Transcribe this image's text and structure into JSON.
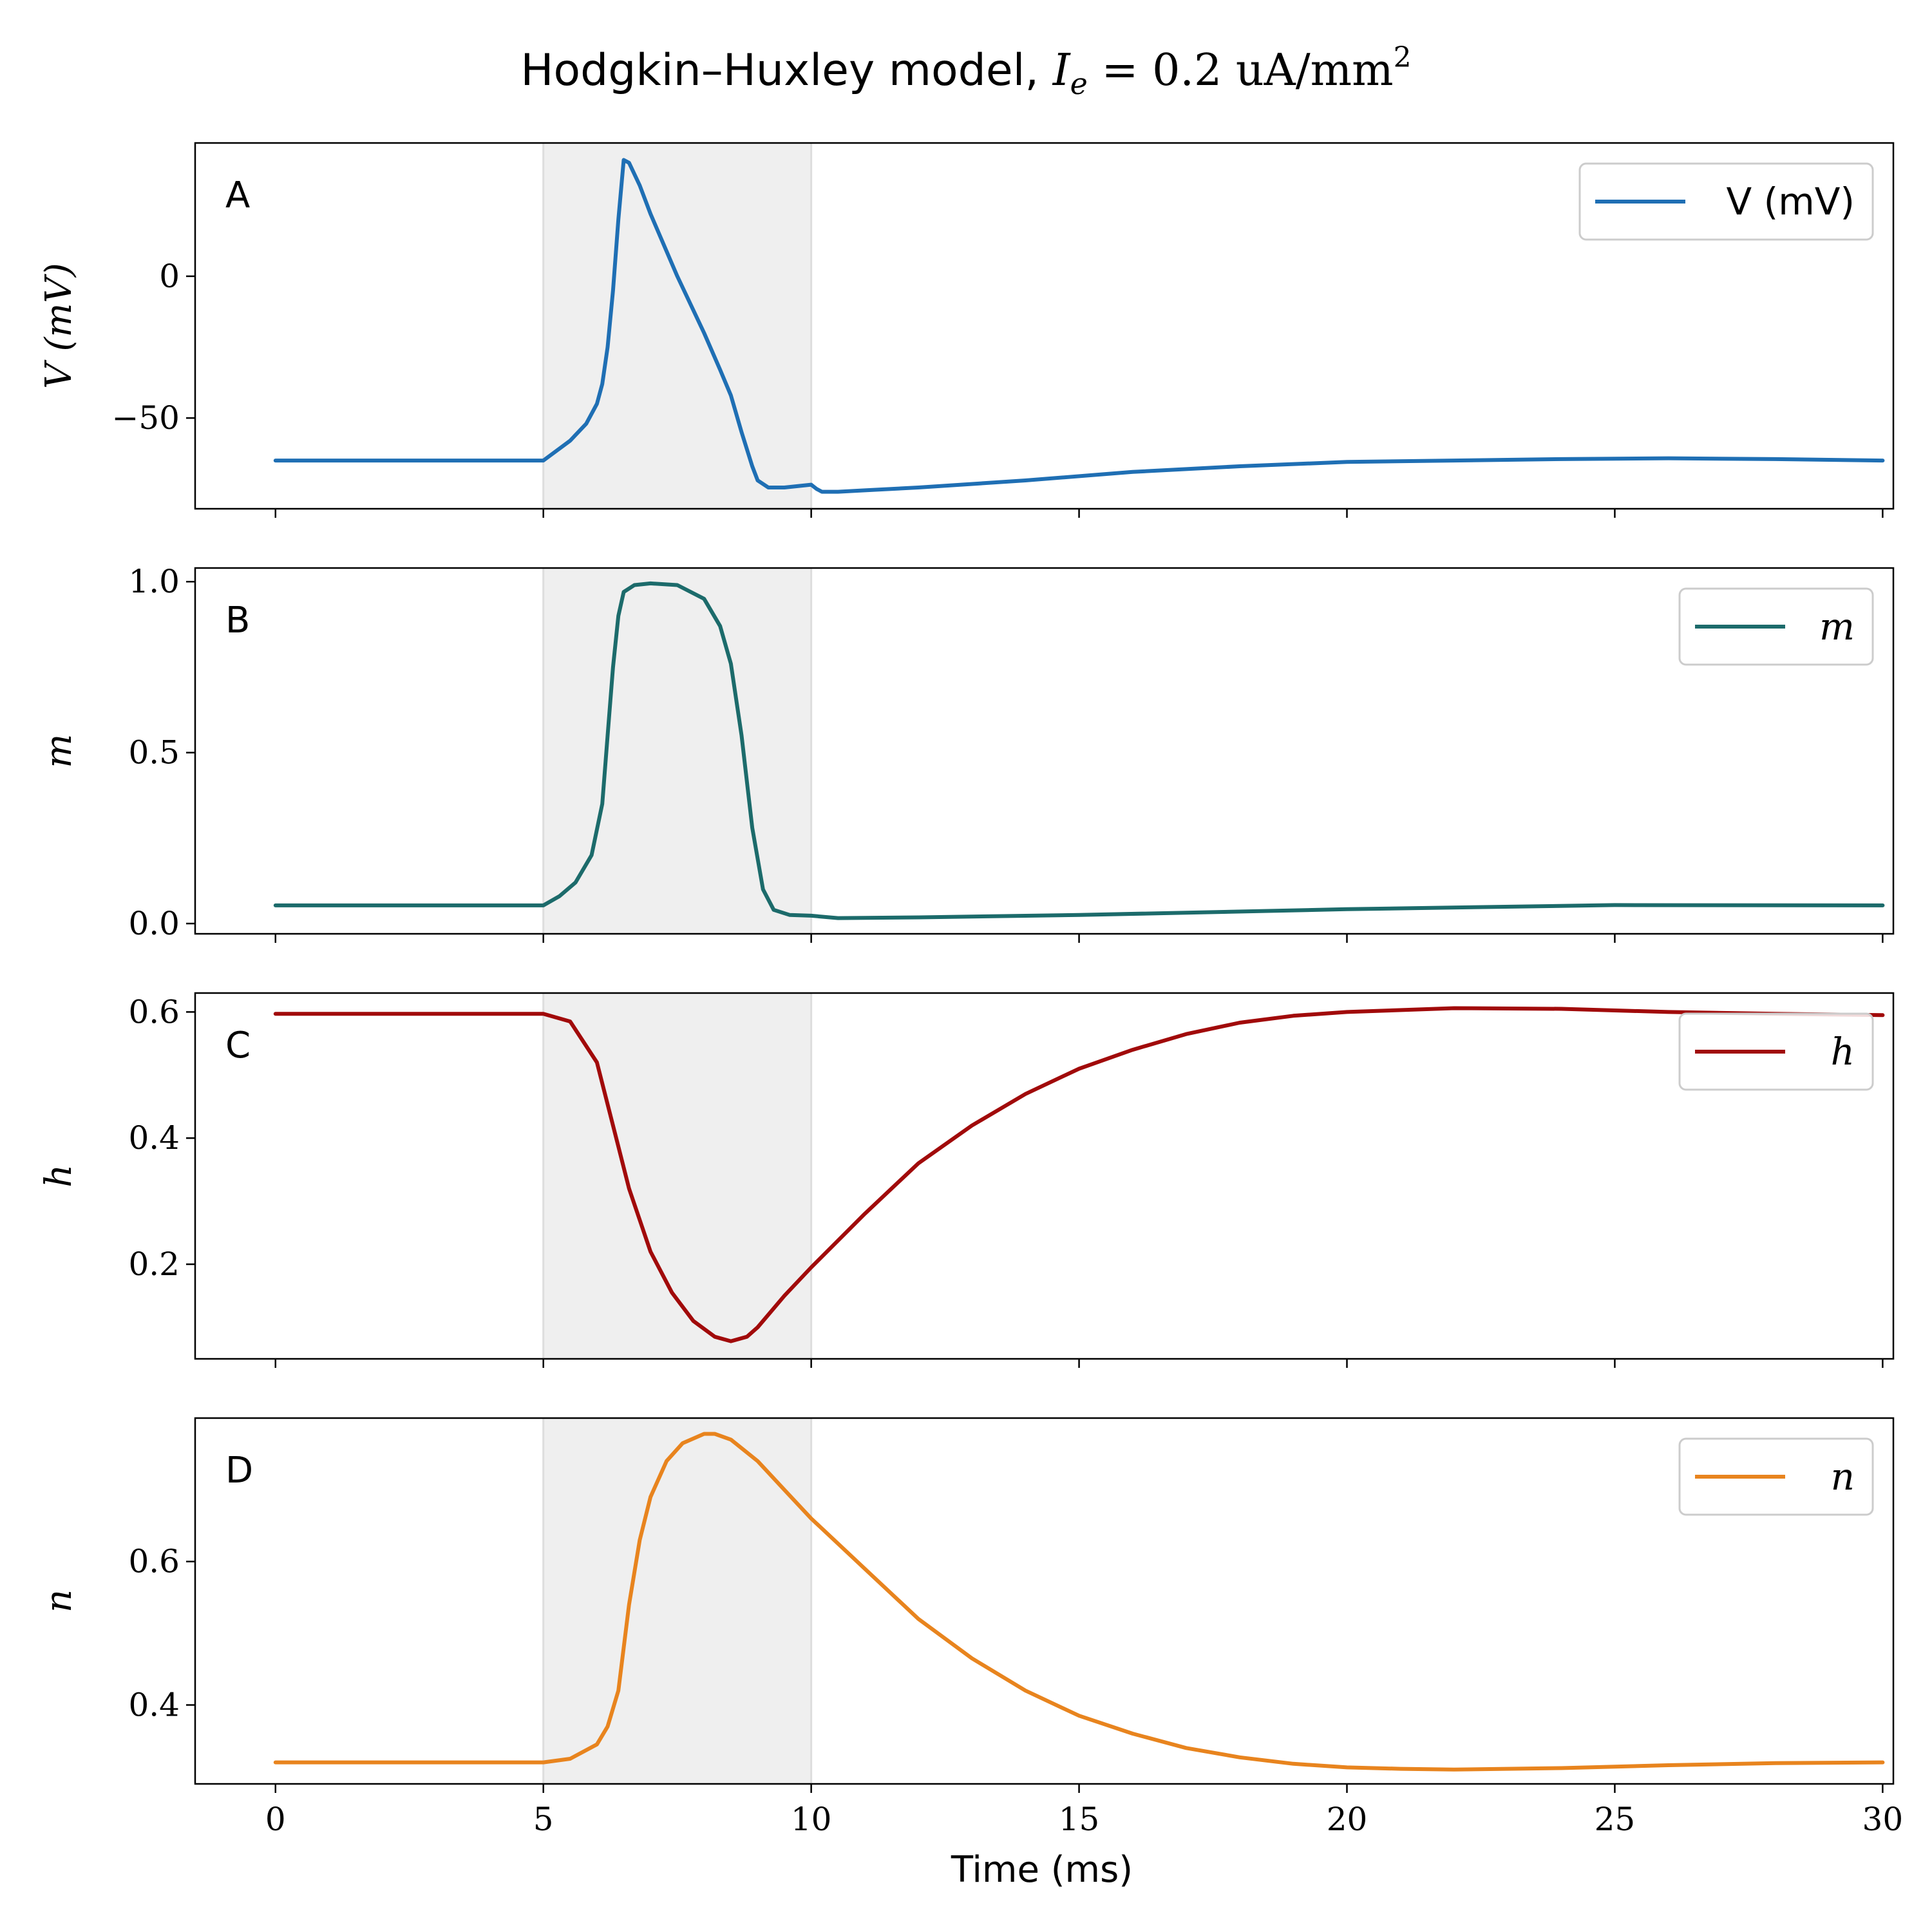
{
  "title": {
    "prefix": "Hodgkin–Huxley model, ",
    "math_var": "I",
    "math_sub": "e",
    "math_rest": " = 0.2 uA/mm",
    "math_sup": "2"
  },
  "shade_region": {
    "x_start": 5,
    "x_end": 10,
    "color": "#efefef"
  },
  "chart_data": [
    {
      "type": "line",
      "panel_letter": "A",
      "ylabel": "V (mV)",
      "ylabel_math": true,
      "ylim": [
        -82,
        47
      ],
      "yticks": [
        0,
        -50
      ],
      "ytick_labels": [
        "0",
        "−50"
      ],
      "grid": false,
      "legend_placement": "top-right",
      "series": [
        {
          "name": "V (mV)",
          "name_math": false,
          "color": "#1f6fb4",
          "x": [
            0,
            4.9,
            5,
            5.5,
            5.8,
            6.0,
            6.1,
            6.2,
            6.3,
            6.4,
            6.5,
            6.6,
            6.8,
            7.0,
            7.5,
            8.0,
            8.3,
            8.5,
            8.7,
            8.9,
            9.0,
            9.2,
            9.5,
            10.0,
            10.1,
            10.2,
            10.5,
            11,
            12,
            14,
            16,
            18,
            20,
            22,
            24,
            26,
            28,
            30
          ],
          "y": [
            -65,
            -65,
            -65,
            -58,
            -52,
            -45,
            -38,
            -25,
            -5,
            20,
            41,
            40,
            32,
            22,
            0,
            -20,
            -33,
            -42,
            -55,
            -67,
            -72,
            -74.5,
            -74.5,
            -73.5,
            -75,
            -76,
            -76,
            -75.5,
            -74.5,
            -72,
            -69,
            -67,
            -65.5,
            -65,
            -64.5,
            -64.2,
            -64.5,
            -65
          ]
        }
      ]
    },
    {
      "type": "line",
      "panel_letter": "B",
      "ylabel": "m",
      "ylabel_math": true,
      "ylim": [
        -0.03,
        1.04
      ],
      "yticks": [
        0,
        0.5,
        1
      ],
      "ytick_labels": [
        "0.0",
        "0.5",
        "1.0"
      ],
      "grid": false,
      "legend_placement": "top-right",
      "series": [
        {
          "name": "m",
          "name_math": true,
          "color": "#1c6b6b",
          "x": [
            0,
            5,
            5.3,
            5.6,
            5.9,
            6.1,
            6.2,
            6.3,
            6.4,
            6.5,
            6.7,
            7.0,
            7.5,
            8.0,
            8.3,
            8.5,
            8.7,
            8.9,
            9.1,
            9.3,
            9.6,
            10.0,
            10.5,
            12,
            15,
            20,
            25,
            30
          ],
          "y": [
            0.053,
            0.053,
            0.08,
            0.12,
            0.2,
            0.35,
            0.55,
            0.75,
            0.9,
            0.97,
            0.99,
            0.995,
            0.99,
            0.95,
            0.87,
            0.76,
            0.55,
            0.28,
            0.1,
            0.04,
            0.025,
            0.023,
            0.016,
            0.018,
            0.025,
            0.042,
            0.054,
            0.053
          ]
        }
      ]
    },
    {
      "type": "line",
      "panel_letter": "C",
      "ylabel": "h",
      "ylabel_math": true,
      "ylim": [
        0.05,
        0.63
      ],
      "yticks": [
        0.2,
        0.4,
        0.6
      ],
      "ytick_labels": [
        "0.2",
        "0.4",
        "0.6"
      ],
      "grid": false,
      "legend_placement": "top-right",
      "series": [
        {
          "name": "h",
          "name_math": true,
          "color": "#a10a0a",
          "x": [
            0,
            5,
            5.5,
            6.0,
            6.3,
            6.6,
            7.0,
            7.4,
            7.8,
            8.2,
            8.5,
            8.8,
            9.0,
            9.5,
            10.0,
            11,
            12,
            13,
            14,
            15,
            16,
            17,
            18,
            19,
            20,
            22,
            24,
            26,
            28,
            30
          ],
          "y": [
            0.597,
            0.597,
            0.585,
            0.52,
            0.42,
            0.32,
            0.22,
            0.155,
            0.11,
            0.085,
            0.078,
            0.085,
            0.1,
            0.15,
            0.195,
            0.28,
            0.36,
            0.42,
            0.47,
            0.51,
            0.54,
            0.565,
            0.583,
            0.594,
            0.6,
            0.606,
            0.605,
            0.6,
            0.597,
            0.595
          ]
        }
      ]
    },
    {
      "type": "line",
      "panel_letter": "D",
      "ylabel": "n",
      "ylabel_math": true,
      "ylim": [
        0.29,
        0.8
      ],
      "yticks": [
        0.4,
        0.6
      ],
      "ytick_labels": [
        "0.4",
        "0.6"
      ],
      "grid": false,
      "legend_placement": "top-right",
      "series": [
        {
          "name": "n",
          "name_math": true,
          "color": "#e8841e",
          "x": [
            0,
            5,
            5.5,
            6.0,
            6.2,
            6.4,
            6.5,
            6.6,
            6.8,
            7.0,
            7.3,
            7.6,
            8.0,
            8.2,
            8.5,
            9.0,
            9.5,
            10.0,
            11,
            12,
            13,
            14,
            15,
            16,
            17,
            18,
            19,
            20,
            21,
            22,
            24,
            26,
            28,
            30
          ],
          "y": [
            0.32,
            0.32,
            0.325,
            0.345,
            0.37,
            0.42,
            0.48,
            0.54,
            0.63,
            0.69,
            0.74,
            0.765,
            0.778,
            0.778,
            0.77,
            0.74,
            0.7,
            0.66,
            0.59,
            0.52,
            0.465,
            0.42,
            0.385,
            0.36,
            0.34,
            0.327,
            0.318,
            0.313,
            0.311,
            0.31,
            0.312,
            0.316,
            0.319,
            0.32
          ]
        }
      ]
    }
  ],
  "x_axis": {
    "label": "Time (ms)",
    "xlim": [
      -1.5,
      30.2
    ],
    "ticks": [
      0,
      5,
      10,
      15,
      20,
      25,
      30
    ],
    "tick_labels": [
      "0",
      "5",
      "10",
      "15",
      "20",
      "25",
      "30"
    ]
  }
}
